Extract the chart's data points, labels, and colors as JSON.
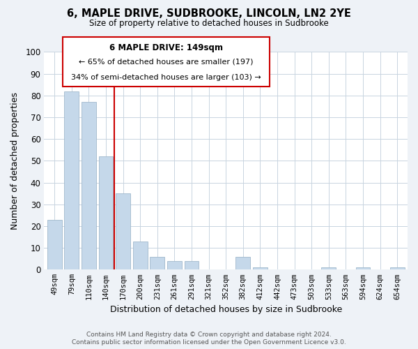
{
  "title": "6, MAPLE DRIVE, SUDBROOKE, LINCOLN, LN2 2YE",
  "subtitle": "Size of property relative to detached houses in Sudbrooke",
  "xlabel": "Distribution of detached houses by size in Sudbrooke",
  "ylabel": "Number of detached properties",
  "categories": [
    "49sqm",
    "79sqm",
    "110sqm",
    "140sqm",
    "170sqm",
    "200sqm",
    "231sqm",
    "261sqm",
    "291sqm",
    "321sqm",
    "352sqm",
    "382sqm",
    "412sqm",
    "442sqm",
    "473sqm",
    "503sqm",
    "533sqm",
    "563sqm",
    "594sqm",
    "624sqm",
    "654sqm"
  ],
  "values": [
    23,
    82,
    77,
    52,
    35,
    13,
    6,
    4,
    4,
    0,
    0,
    6,
    1,
    0,
    0,
    0,
    1,
    0,
    1,
    0,
    1
  ],
  "bar_color": "#c5d8ea",
  "bar_edge_color": "#a0b8cc",
  "highlight_index": 3,
  "highlight_line_color": "#cc0000",
  "ylim": [
    0,
    100
  ],
  "annotation_title": "6 MAPLE DRIVE: 149sqm",
  "annotation_line1": "← 65% of detached houses are smaller (197)",
  "annotation_line2": "34% of semi-detached houses are larger (103) →",
  "annotation_box_color": "#ffffff",
  "annotation_box_edge": "#cc0000",
  "footer_line1": "Contains HM Land Registry data © Crown copyright and database right 2024.",
  "footer_line2": "Contains public sector information licensed under the Open Government Licence v3.0.",
  "background_color": "#eef2f7",
  "plot_background": "#ffffff",
  "grid_color": "#c8d4e0"
}
